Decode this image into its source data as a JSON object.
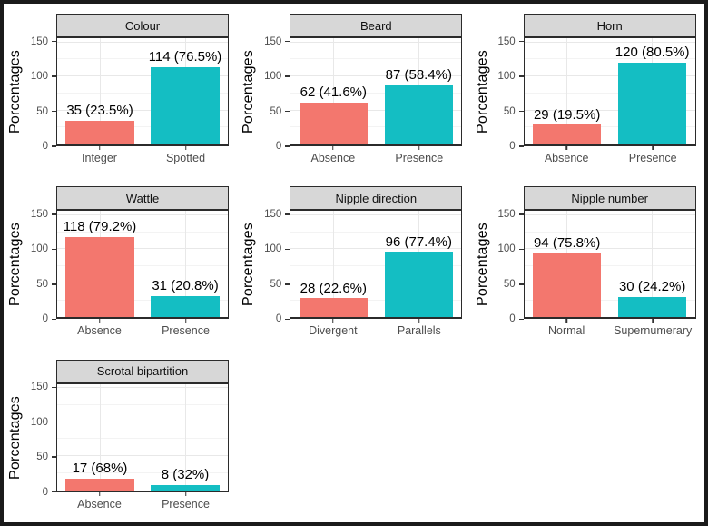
{
  "figure": {
    "y_axis_title": "Porcentages",
    "y_ticks": [
      0,
      50,
      100,
      150
    ],
    "y_max": 156,
    "grid_minor_values": [
      25,
      75,
      125
    ],
    "grid_major_values": [
      50,
      100,
      150
    ],
    "colors": {
      "bar_left": "#F3776E",
      "bar_right": "#14BEC3",
      "strip_bg": "#D7D7D7",
      "panel_border": "#2B2B2B",
      "outer_border": "#1A1A1A",
      "grid_major": "#E8E8E8",
      "grid_minor": "#F3F3F3",
      "axis_text": "#4D4D4D",
      "label_text": "#000000"
    }
  },
  "chart_data": [
    {
      "type": "bar",
      "title": "Colour",
      "categories": [
        "Integer",
        "Spotted"
      ],
      "values": [
        35,
        114
      ],
      "labels": [
        "35 (23.5%)",
        "114 (76.5%)"
      ],
      "ylabel": "Porcentages",
      "ylim": [
        0,
        156
      ]
    },
    {
      "type": "bar",
      "title": "Beard",
      "categories": [
        "Absence",
        "Presence"
      ],
      "values": [
        62,
        87
      ],
      "labels": [
        "62 (41.6%)",
        "87 (58.4%)"
      ],
      "ylabel": "Porcentages",
      "ylim": [
        0,
        156
      ]
    },
    {
      "type": "bar",
      "title": "Horn",
      "categories": [
        "Absence",
        "Presence"
      ],
      "values": [
        29,
        120
      ],
      "labels": [
        "29 (19.5%)",
        "120 (80.5%)"
      ],
      "ylabel": "Porcentages",
      "ylim": [
        0,
        156
      ]
    },
    {
      "type": "bar",
      "title": "Wattle",
      "categories": [
        "Absence",
        "Presence"
      ],
      "values": [
        118,
        31
      ],
      "labels": [
        "118 (79.2%)",
        "31 (20.8%)"
      ],
      "ylabel": "Porcentages",
      "ylim": [
        0,
        156
      ]
    },
    {
      "type": "bar",
      "title": "Nipple direction",
      "categories": [
        "Divergent",
        "Parallels"
      ],
      "values": [
        28,
        96
      ],
      "labels": [
        "28 (22.6%)",
        "96 (77.4%)"
      ],
      "ylabel": "Porcentages",
      "ylim": [
        0,
        156
      ]
    },
    {
      "type": "bar",
      "title": "Nipple number",
      "categories": [
        "Normal",
        "Supernumerary"
      ],
      "values": [
        94,
        30
      ],
      "labels": [
        "94 (75.8%)",
        "30 (24.2%)"
      ],
      "ylabel": "Porcentages",
      "ylim": [
        0,
        156
      ]
    },
    {
      "type": "bar",
      "title": "Scrotal bipartition",
      "categories": [
        "Absence",
        "Presence"
      ],
      "values": [
        17,
        8
      ],
      "labels": [
        "17 (68%)",
        "8 (32%)"
      ],
      "ylabel": "Porcentages",
      "ylim": [
        0,
        156
      ]
    }
  ]
}
